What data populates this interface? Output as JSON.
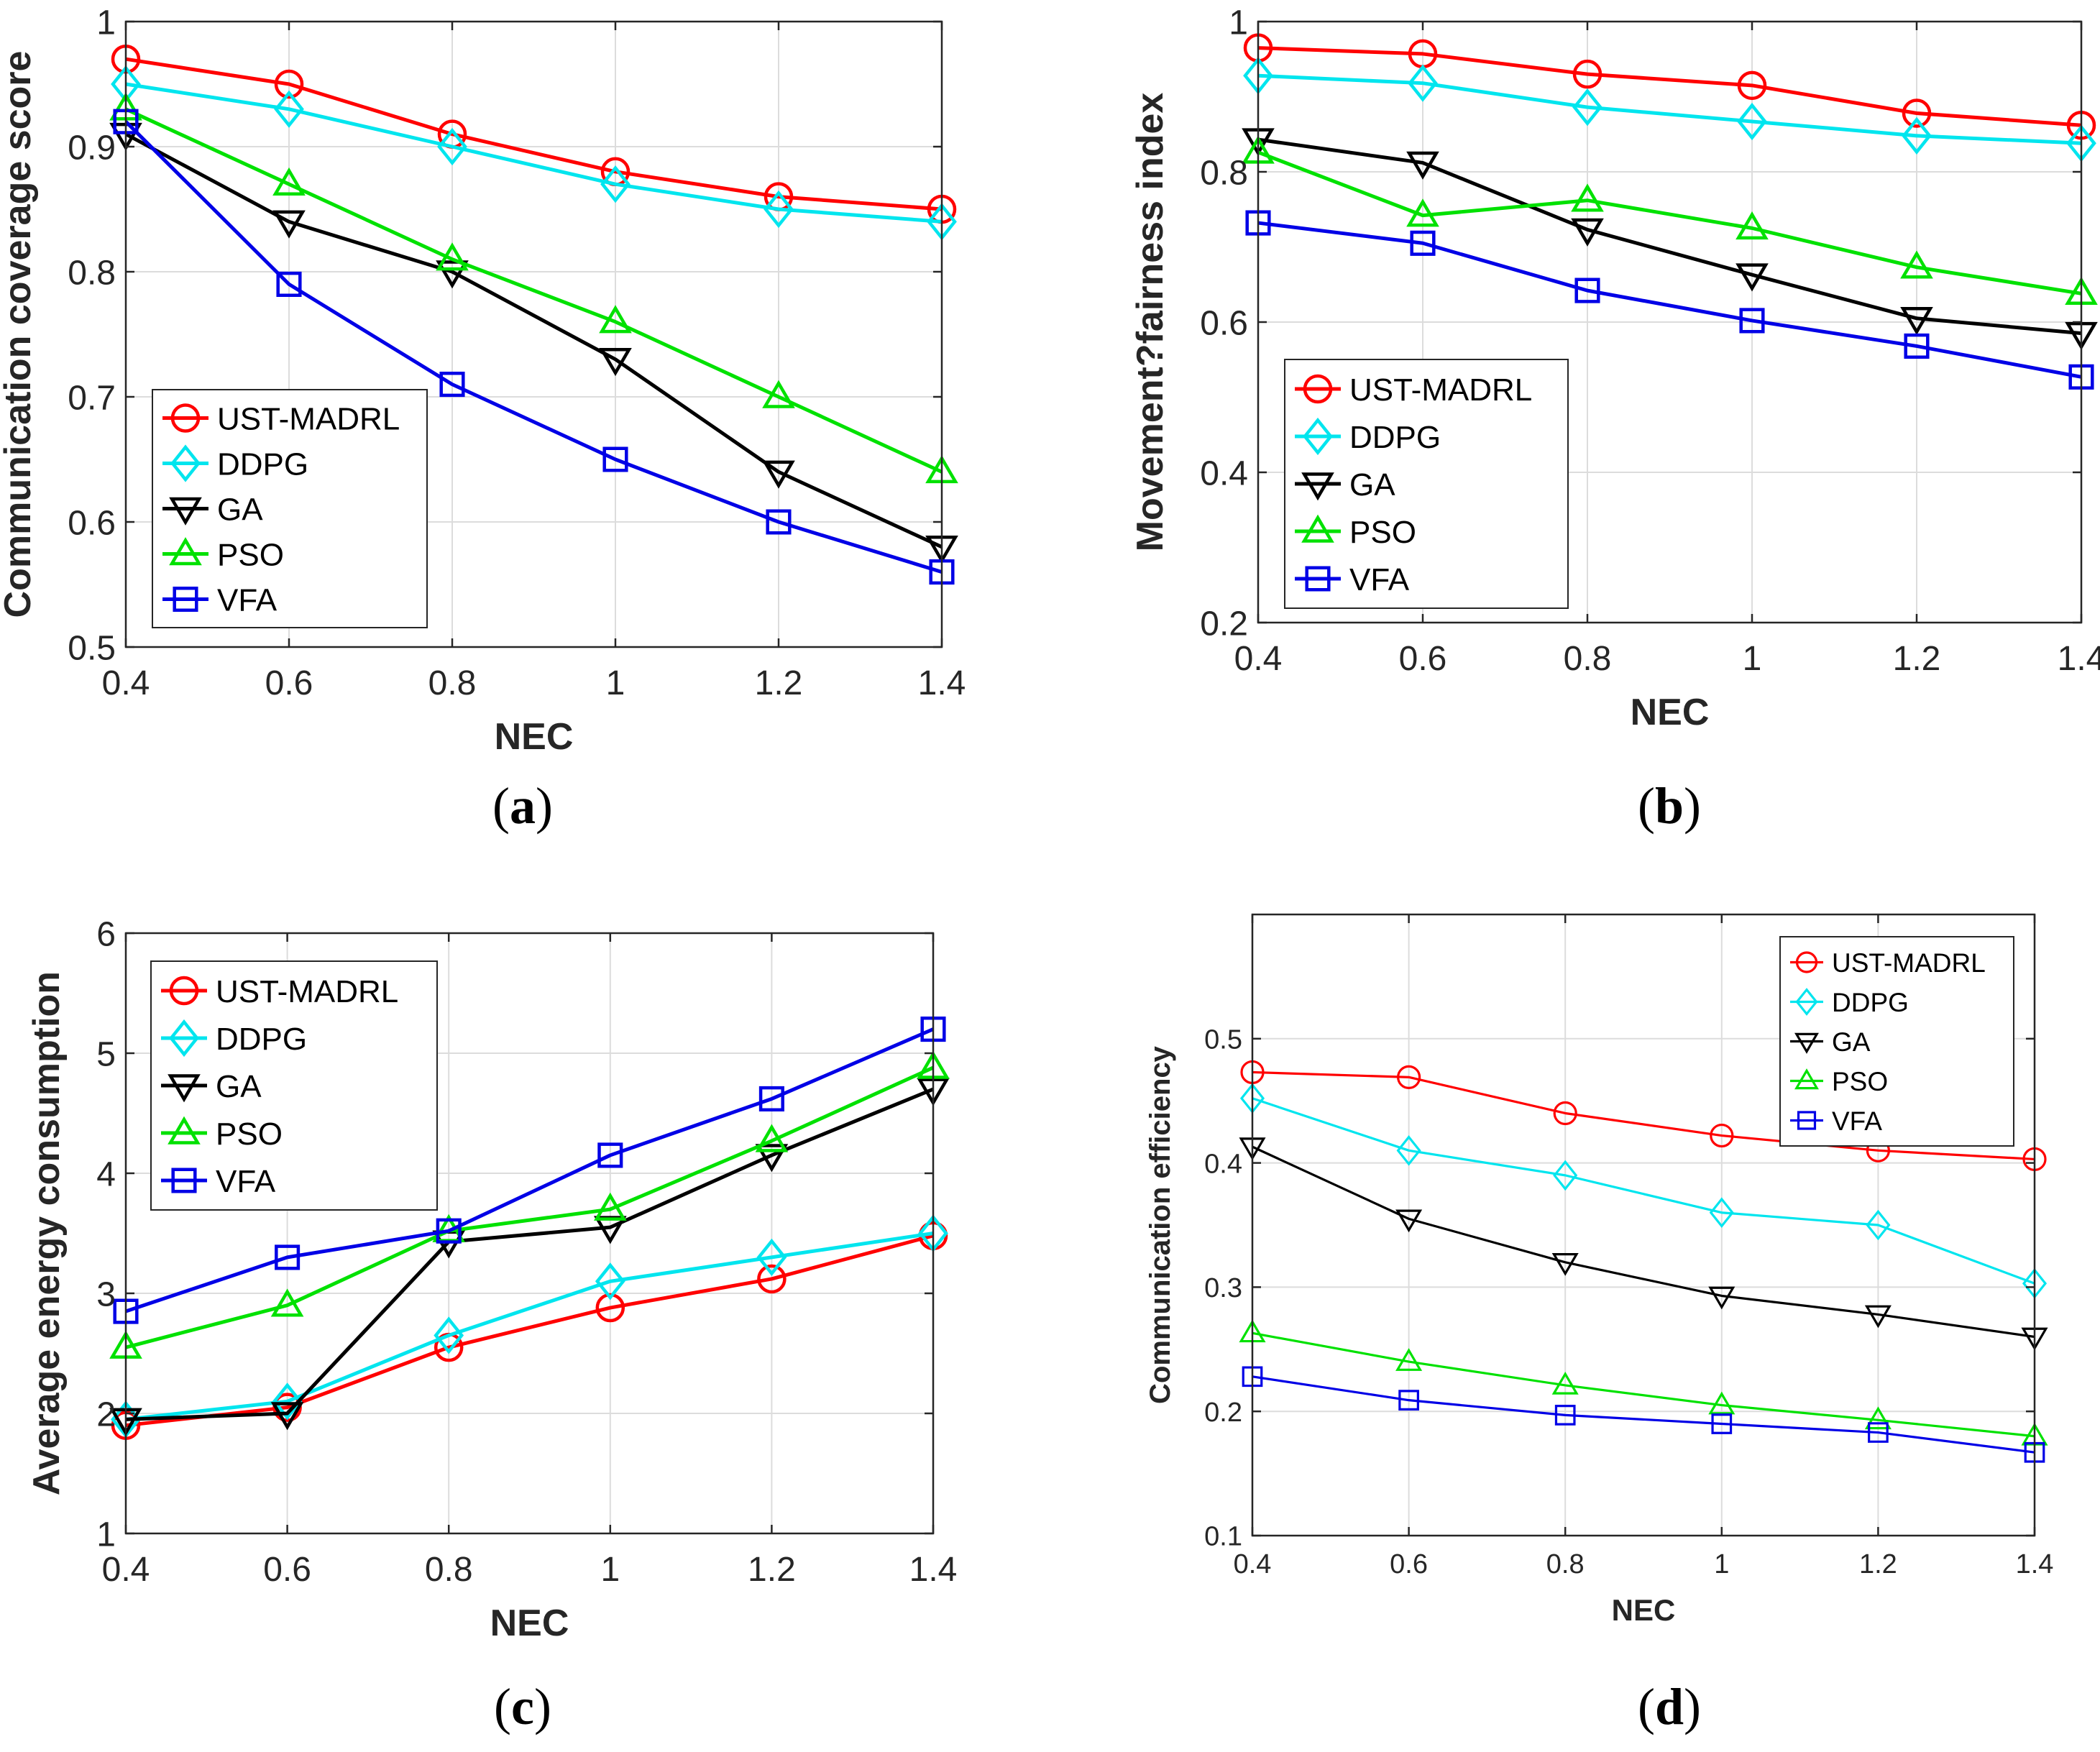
{
  "colors": {
    "UST-MADRL": "#ff0000",
    "DDPG": "#00e5ee",
    "GA": "#000000",
    "PSO": "#00e100",
    "VFA": "#0000e6",
    "grid": "#dcdcdc",
    "axis": "#262626"
  },
  "chart_data": [
    {
      "type": "line",
      "panel": "a",
      "caption_letter": "a",
      "xlabel": "NEC",
      "ylabel": "Communication coverage score",
      "xlim": [
        0.4,
        1.4
      ],
      "ylim": [
        0.5,
        1.0
      ],
      "xticks": [
        0.4,
        0.6,
        0.8,
        1.0,
        1.2,
        1.4
      ],
      "xtick_labels": [
        "0.4",
        "0.6",
        "0.8",
        "1",
        "1.2",
        "1.4"
      ],
      "yticks": [
        0.5,
        0.6,
        0.7,
        0.8,
        0.9,
        1.0
      ],
      "ytick_labels": [
        "0.5",
        "0.6",
        "0.7",
        "0.8",
        "0.9",
        "1"
      ],
      "grid": true,
      "legend_position": "bottom-left",
      "x": [
        0.4,
        0.6,
        0.8,
        1.0,
        1.2,
        1.4
      ],
      "series": [
        {
          "name": "UST-MADRL",
          "marker": "circle",
          "values": [
            0.97,
            0.95,
            0.91,
            0.88,
            0.86,
            0.85
          ]
        },
        {
          "name": "DDPG",
          "marker": "diamond",
          "values": [
            0.95,
            0.93,
            0.9,
            0.87,
            0.85,
            0.84
          ]
        },
        {
          "name": "GA",
          "marker": "triangle-down",
          "values": [
            0.91,
            0.84,
            0.8,
            0.73,
            0.64,
            0.58
          ]
        },
        {
          "name": "PSO",
          "marker": "triangle-up",
          "values": [
            0.93,
            0.87,
            0.81,
            0.76,
            0.7,
            0.64
          ]
        },
        {
          "name": "VFA",
          "marker": "square",
          "values": [
            0.92,
            0.79,
            0.71,
            0.65,
            0.6,
            0.56
          ]
        }
      ]
    },
    {
      "type": "line",
      "panel": "b",
      "caption_letter": "b",
      "xlabel": "NEC",
      "ylabel": "Movement?fairness index",
      "xlim": [
        0.4,
        1.4
      ],
      "ylim": [
        0.2,
        1.0
      ],
      "xticks": [
        0.4,
        0.6,
        0.8,
        1.0,
        1.2,
        1.4
      ],
      "xtick_labels": [
        "0.4",
        "0.6",
        "0.8",
        "1",
        "1.2",
        "1.4"
      ],
      "yticks": [
        0.2,
        0.4,
        0.6,
        0.8,
        1.0
      ],
      "ytick_labels": [
        "0.2",
        "0.4",
        "0.6",
        "0.8",
        "1"
      ],
      "grid": true,
      "legend_position": "bottom-left",
      "x": [
        0.4,
        0.6,
        0.8,
        1.0,
        1.2,
        1.4
      ],
      "series": [
        {
          "name": "UST-MADRL",
          "marker": "circle",
          "values": [
            0.965,
            0.957,
            0.93,
            0.915,
            0.878,
            0.862
          ]
        },
        {
          "name": "DDPG",
          "marker": "diamond",
          "values": [
            0.928,
            0.918,
            0.886,
            0.867,
            0.848,
            0.838
          ]
        },
        {
          "name": "GA",
          "marker": "triangle-down",
          "values": [
            0.843,
            0.812,
            0.723,
            0.663,
            0.605,
            0.585
          ]
        },
        {
          "name": "PSO",
          "marker": "triangle-up",
          "values": [
            0.826,
            0.742,
            0.762,
            0.725,
            0.673,
            0.638
          ]
        },
        {
          "name": "VFA",
          "marker": "square",
          "values": [
            0.732,
            0.705,
            0.642,
            0.602,
            0.568,
            0.527
          ]
        }
      ]
    },
    {
      "type": "line",
      "panel": "c",
      "caption_letter": "c",
      "xlabel": "NEC",
      "ylabel": "Average energy consumption",
      "xlim": [
        0.4,
        1.4
      ],
      "ylim": [
        1,
        6
      ],
      "xticks": [
        0.4,
        0.6,
        0.8,
        1.0,
        1.2,
        1.4
      ],
      "xtick_labels": [
        "0.4",
        "0.6",
        "0.8",
        "1",
        "1.2",
        "1.4"
      ],
      "yticks": [
        1,
        2,
        3,
        4,
        5,
        6
      ],
      "ytick_labels": [
        "1",
        "2",
        "3",
        "4",
        "5",
        "6"
      ],
      "grid": true,
      "legend_position": "top-left",
      "x": [
        0.4,
        0.6,
        0.8,
        1.0,
        1.2,
        1.4
      ],
      "series": [
        {
          "name": "UST-MADRL",
          "marker": "circle",
          "values": [
            1.9,
            2.05,
            2.55,
            2.88,
            3.12,
            3.48
          ]
        },
        {
          "name": "DDPG",
          "marker": "diamond",
          "values": [
            1.95,
            2.1,
            2.65,
            3.1,
            3.3,
            3.5
          ]
        },
        {
          "name": "GA",
          "marker": "triangle-down",
          "values": [
            1.95,
            2.0,
            3.43,
            3.55,
            4.15,
            4.7
          ]
        },
        {
          "name": "PSO",
          "marker": "triangle-up",
          "values": [
            2.55,
            2.9,
            3.52,
            3.7,
            4.27,
            4.88
          ]
        },
        {
          "name": "VFA",
          "marker": "square",
          "values": [
            2.85,
            3.3,
            3.52,
            4.15,
            4.62,
            5.2
          ]
        }
      ]
    },
    {
      "type": "line",
      "panel": "d",
      "caption_letter": "d",
      "xlabel": "NEC",
      "ylabel": "Communication efficiency",
      "xlim": [
        0.4,
        1.4
      ],
      "ylim": [
        0.1,
        0.6
      ],
      "xticks": [
        0.4,
        0.6,
        0.8,
        1.0,
        1.2,
        1.4
      ],
      "xtick_labels": [
        "0.4",
        "0.6",
        "0.8",
        "1",
        "1.2",
        "1.4"
      ],
      "yticks": [
        0.1,
        0.2,
        0.3,
        0.4,
        0.5
      ],
      "ytick_labels": [
        "0.1",
        "0.2",
        "0.3",
        "0.4",
        "0.5"
      ],
      "grid": true,
      "legend_position": "top-right",
      "x": [
        0.4,
        0.6,
        0.8,
        1.0,
        1.2,
        1.4
      ],
      "series": [
        {
          "name": "UST-MADRL",
          "marker": "circle",
          "values": [
            0.473,
            0.469,
            0.44,
            0.422,
            0.41,
            0.403
          ]
        },
        {
          "name": "DDPG",
          "marker": "diamond",
          "values": [
            0.452,
            0.41,
            0.39,
            0.36,
            0.35,
            0.303
          ]
        },
        {
          "name": "GA",
          "marker": "triangle-down",
          "values": [
            0.413,
            0.355,
            0.32,
            0.293,
            0.278,
            0.26
          ]
        },
        {
          "name": "PSO",
          "marker": "triangle-up",
          "values": [
            0.263,
            0.24,
            0.221,
            0.205,
            0.193,
            0.18
          ]
        },
        {
          "name": "VFA",
          "marker": "square",
          "values": [
            0.228,
            0.209,
            0.197,
            0.19,
            0.183,
            0.167
          ]
        }
      ]
    }
  ]
}
